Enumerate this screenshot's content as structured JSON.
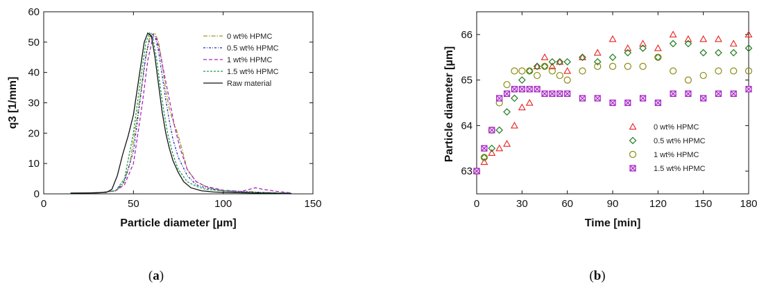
{
  "chart_data": [
    {
      "type": "line",
      "panel_label": "(a)",
      "panel_letter": "a",
      "xlabel": "Particle diameter [µm]",
      "ylabel": "q3 [1/mm]",
      "xlim": [
        0,
        150
      ],
      "ylim": [
        0,
        60
      ],
      "xticks": [
        0,
        50,
        100,
        150
      ],
      "yticks": [
        0,
        10,
        20,
        30,
        40,
        50,
        60
      ],
      "grid": false,
      "legend_position": "top-right",
      "series": [
        {
          "name": "0 wt% HPMC",
          "color": "#9a9a1a",
          "dash": "6,2,1.5,2",
          "x": [
            15,
            30,
            40,
            44,
            48,
            52,
            56,
            59,
            62,
            64,
            66,
            68,
            70,
            72,
            74,
            76,
            80,
            85,
            90,
            95,
            100,
            110,
            115,
            120,
            130,
            138
          ],
          "y": [
            0.3,
            0.3,
            1,
            3,
            10,
            25,
            42,
            52,
            53,
            50,
            43,
            34,
            28,
            24,
            21,
            17,
            8,
            4,
            2.5,
            1.5,
            1,
            0.6,
            0.8,
            0.5,
            0.3,
            0.2
          ]
        },
        {
          "name": "0.5 wt% HPMC",
          "color": "#1f2bb0",
          "dash": "3,2,1,2",
          "x": [
            15,
            30,
            40,
            45,
            50,
            54,
            57,
            60,
            62,
            64,
            66,
            68,
            70,
            72,
            75,
            80,
            85,
            90,
            100,
            110,
            120,
            138
          ],
          "y": [
            0.3,
            0.3,
            1,
            4,
            14,
            32,
            46,
            53,
            52,
            47,
            39,
            31,
            24,
            18,
            12,
            6,
            3,
            2,
            1,
            0.8,
            0.5,
            0.2
          ]
        },
        {
          "name": "1 wt% HPMC",
          "color": "#b020c0",
          "dash": "5,3",
          "x": [
            15,
            30,
            40,
            45,
            50,
            55,
            58,
            61,
            63,
            65,
            67,
            69,
            71,
            73,
            76,
            80,
            85,
            90,
            100,
            110,
            118,
            122,
            130,
            138
          ],
          "y": [
            0.3,
            0.3,
            1,
            3,
            10,
            30,
            44,
            52,
            51,
            46,
            40,
            34,
            28,
            22,
            15,
            8,
            4,
            2.5,
            1.2,
            0.8,
            2,
            1.5,
            0.8,
            0.3
          ]
        },
        {
          "name": "1.5 wt% HPMC",
          "color": "#1a9a4a",
          "dash": "3,2",
          "x": [
            15,
            30,
            40,
            45,
            50,
            54,
            57,
            59,
            61,
            63,
            65,
            67,
            69,
            72,
            75,
            80,
            85,
            90,
            100,
            110,
            120,
            138
          ],
          "y": [
            0.3,
            0.3,
            1,
            5,
            20,
            38,
            50,
            53,
            51,
            44,
            35,
            27,
            20,
            13,
            8,
            4,
            2.5,
            1.5,
            1,
            0.6,
            0.4,
            0.2
          ]
        },
        {
          "name": "Raw material",
          "color": "#111111",
          "dash": "",
          "x": [
            15,
            25,
            35,
            38,
            41,
            44,
            47,
            50,
            53,
            56,
            58,
            60,
            62,
            64,
            66,
            68,
            70,
            72,
            75,
            78,
            82,
            88,
            95,
            105,
            115,
            125,
            138
          ],
          "y": [
            0.2,
            0.3,
            0.5,
            1.5,
            6,
            13,
            19,
            26,
            38,
            50,
            53,
            52,
            45,
            36,
            27,
            20,
            15,
            11,
            7,
            4,
            2,
            1,
            0.6,
            0.4,
            0.3,
            0.2,
            0.1
          ]
        }
      ]
    },
    {
      "type": "scatter",
      "panel_label": "(b)",
      "panel_letter": "b",
      "xlabel": "Time [min]",
      "ylabel": "Particle diameter [µm]",
      "xlim": [
        0,
        180
      ],
      "ylim": [
        62.5,
        66.5
      ],
      "xticks": [
        0,
        30,
        60,
        90,
        120,
        150,
        180
      ],
      "yticks": [
        63,
        64,
        65,
        66
      ],
      "grid": false,
      "legend_position": "bottom-right",
      "series": [
        {
          "name": "0 wt% HPMC",
          "marker": "triangle",
          "color": "#e82020",
          "x": [
            0,
            5,
            10,
            15,
            20,
            25,
            30,
            35,
            40,
            45,
            50,
            55,
            60,
            70,
            80,
            90,
            100,
            110,
            120,
            130,
            140,
            150,
            160,
            170,
            180
          ],
          "y": [
            63.0,
            63.2,
            63.4,
            63.5,
            63.6,
            64.0,
            64.4,
            64.5,
            65.3,
            65.5,
            65.3,
            65.4,
            65.2,
            65.5,
            65.6,
            65.9,
            65.7,
            65.8,
            65.7,
            66.0,
            65.9,
            65.9,
            65.9,
            65.8,
            66.0
          ]
        },
        {
          "name": "0.5 wt% HPMC",
          "marker": "diamond",
          "color": "#1a7a1a",
          "x": [
            0,
            5,
            10,
            15,
            20,
            25,
            30,
            35,
            40,
            45,
            50,
            55,
            60,
            70,
            80,
            90,
            100,
            110,
            120,
            130,
            140,
            150,
            160,
            170,
            180
          ],
          "y": [
            63.0,
            63.3,
            63.5,
            63.9,
            64.3,
            64.6,
            65.0,
            65.2,
            65.3,
            65.3,
            65.4,
            65.4,
            65.4,
            65.5,
            65.4,
            65.5,
            65.6,
            65.7,
            65.5,
            65.8,
            65.8,
            65.6,
            65.6,
            65.6,
            65.7
          ]
        },
        {
          "name": "1 wt% HPMC",
          "marker": "circle",
          "color": "#8a8a10",
          "x": [
            0,
            5,
            10,
            15,
            20,
            25,
            30,
            35,
            40,
            45,
            50,
            55,
            60,
            70,
            80,
            90,
            100,
            110,
            120,
            130,
            140,
            150,
            160,
            170,
            180
          ],
          "y": [
            63.0,
            63.3,
            63.9,
            64.5,
            64.9,
            65.2,
            65.2,
            65.2,
            65.1,
            65.3,
            65.2,
            65.1,
            65.0,
            65.2,
            65.3,
            65.3,
            65.3,
            65.3,
            65.5,
            65.2,
            65.0,
            65.1,
            65.2,
            65.2,
            65.2
          ]
        },
        {
          "name": "1.5 wt% HPMC",
          "marker": "crossbox",
          "color": "#a020c0",
          "x": [
            0,
            5,
            10,
            15,
            20,
            25,
            30,
            35,
            40,
            45,
            50,
            55,
            60,
            70,
            80,
            90,
            100,
            110,
            120,
            130,
            140,
            150,
            160,
            170,
            180
          ],
          "y": [
            63.0,
            63.5,
            63.9,
            64.6,
            64.7,
            64.8,
            64.8,
            64.8,
            64.8,
            64.7,
            64.7,
            64.7,
            64.7,
            64.6,
            64.6,
            64.5,
            64.5,
            64.6,
            64.5,
            64.7,
            64.7,
            64.6,
            64.7,
            64.7,
            64.8
          ]
        }
      ]
    }
  ]
}
